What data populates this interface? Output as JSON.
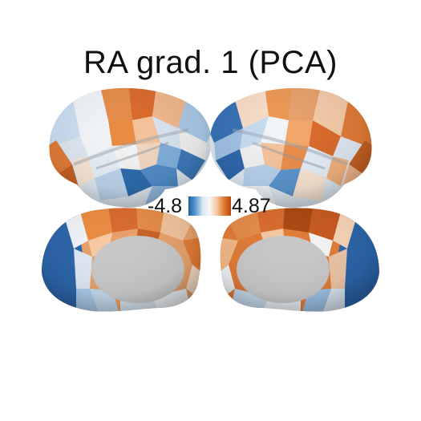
{
  "title": "RA grad. 1 (PCA)",
  "colorbar": {
    "min_label": "-4.8",
    "max_label": "4.87",
    "min_value": -4.8,
    "max_value": 4.87,
    "colors": [
      "#1f5fa6",
      "#5b9bd0",
      "#d9e6f2",
      "#f7f7f7",
      "#f6c6a0",
      "#e57a35",
      "#b4470f"
    ]
  },
  "views": [
    {
      "hemisphere": "left",
      "view": "lateral"
    },
    {
      "hemisphere": "right",
      "view": "lateral"
    },
    {
      "hemisphere": "left",
      "view": "medial"
    },
    {
      "hemisphere": "right",
      "view": "medial"
    }
  ]
}
